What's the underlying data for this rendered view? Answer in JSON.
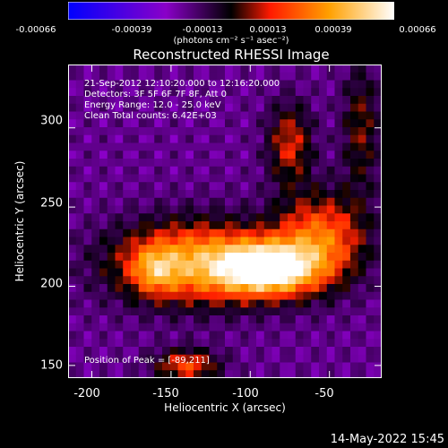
{
  "colorbar": {
    "ticks": [
      "-0.00066",
      "-0.00039",
      "-0.00013",
      "0.00013",
      "0.00039",
      "0.00066"
    ],
    "unit": "(photons cm⁻² s⁻¹ asec⁻²)"
  },
  "title": "Reconstructed RHESSI Image",
  "annotations": {
    "time": "21-Sep-2012 12:10:20.000 to 12:16:20.000",
    "detectors": "Detectors: 3F 5F 6F 7F 8F, Att 0",
    "energy": "Energy Range: 12.0 - 25.0 keV",
    "clean": "Clean     Total counts: 6.42E+03",
    "peak": "Position of Peak = [-89,211]"
  },
  "chart_data": {
    "type": "heatmap",
    "title": "Reconstructed RHESSI Image",
    "xlabel": "Heliocentric X (arcsec)",
    "ylabel": "Heliocentric Y (arcsec)",
    "xlim": [
      -215,
      -17
    ],
    "ylim": [
      142,
      340
    ],
    "xticks": [
      -200,
      -150,
      -100,
      -50
    ],
    "yticks": [
      150,
      200,
      250,
      300
    ],
    "colorbar_range": [
      -0.00066,
      0.00066
    ],
    "colormap": [
      "#0000ff",
      "#8a00c8",
      "#000000",
      "#ff2000",
      "#ffa000",
      "#ffffff"
    ],
    "peak_position": [
      -89,
      211
    ],
    "grid": false
  },
  "footer": "14-May-2022 15:45"
}
